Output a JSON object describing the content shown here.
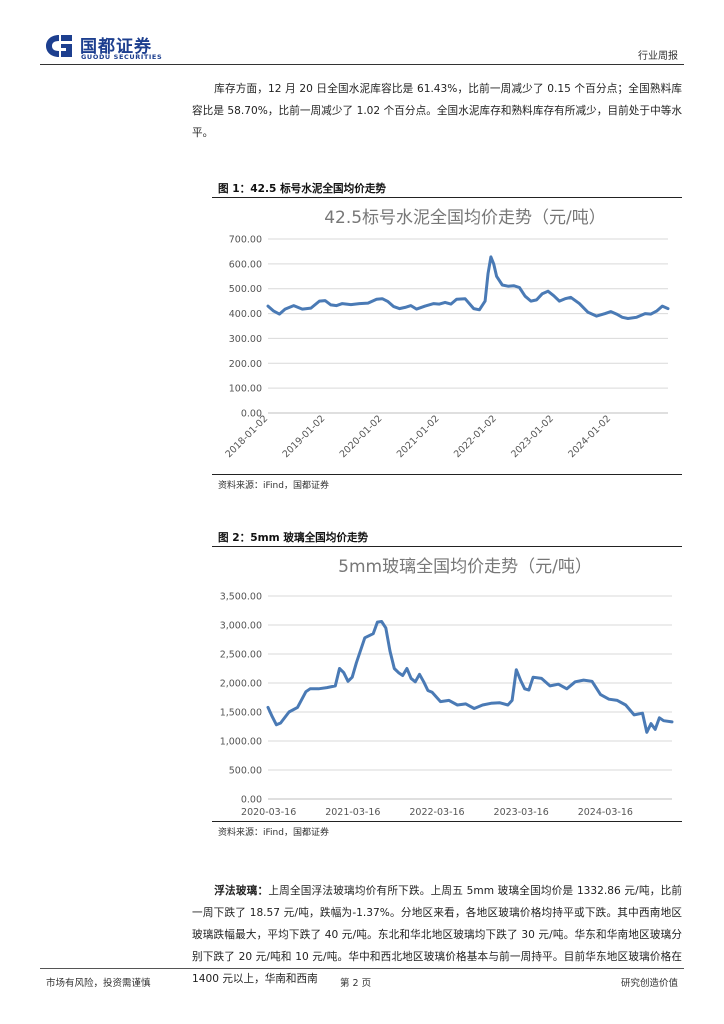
{
  "header": {
    "logo_cn": "国都证券",
    "logo_en": "GUODU SECURITIES",
    "report_type": "行业周报"
  },
  "para1": "库存方面，12 月 20 日全国水泥库容比是 61.43%，比前一周减少了 0.15 个百分点；全国熟料库容比是 58.70%，比前一周减少了 1.02 个百分点。全国水泥库存和熟料库存有所减少，目前处于中等水平。",
  "fig1": {
    "caption": "图 1：42.5 标号水泥全国均价走势",
    "source": "资料来源：iFind，国都证券"
  },
  "fig2": {
    "caption": "图 2：5mm 玻璃全国均价走势",
    "source": "资料来源：iFind，国都证券"
  },
  "para2": {
    "lead": "浮法玻璃：",
    "text": "上周全国浮法玻璃均价有所下跌。上周五 5mm 玻璃全国均价是 1332.86 元/吨，比前一周下跌了 18.57 元/吨，跌幅为-1.37%。分地区来看，各地区玻璃价格均持平或下跌。其中西南地区玻璃跌幅最大，平均下跌了 40 元/吨。东北和华北地区玻璃均下跌了 30 元/吨。华东和华南地区玻璃分别下跌了 20 元/吨和 10 元/吨。华中和西北地区玻璃价格基本与前一周持平。目前华东地区玻璃价格在 1400 元以上，华南和西南"
  },
  "footer": {
    "left": "市场有风险，投资需谨慎",
    "page": "第 2 页",
    "right": "研究创造价值"
  },
  "colors": {
    "brand": "#1d3f8f",
    "line": "#4a7ab5"
  },
  "chart_data": [
    {
      "type": "line",
      "title": "42.5标号水泥全国均价走势（元/吨）",
      "yticks": [
        "0.00",
        "100.00",
        "200.00",
        "300.00",
        "400.00",
        "500.00",
        "600.00",
        "700.00"
      ],
      "ylim": [
        0,
        700
      ],
      "xticks": [
        "2018-01-02",
        "2019-01-02",
        "2020-01-02",
        "2021-01-02",
        "2022-01-02",
        "2023-01-02",
        "2024-01-02"
      ],
      "xlim": [
        2018.0,
        2025.0
      ],
      "grid": true,
      "series": [
        {
          "x": [
            2018.0,
            2018.1,
            2018.2,
            2018.3,
            2018.45,
            2018.6,
            2018.75,
            2018.9,
            2019.0,
            2019.1,
            2019.2,
            2019.3,
            2019.45,
            2019.6,
            2019.75,
            2019.9,
            2020.0,
            2020.1,
            2020.2,
            2020.3,
            2020.4,
            2020.5,
            2020.6,
            2020.75,
            2020.9,
            2021.0,
            2021.1,
            2021.2,
            2021.3,
            2021.45,
            2021.6,
            2021.7,
            2021.8,
            2021.85,
            2021.9,
            2021.95,
            2022.0,
            2022.1,
            2022.2,
            2022.3,
            2022.4,
            2022.5,
            2022.6,
            2022.7,
            2022.8,
            2022.9,
            2023.0,
            2023.1,
            2023.2,
            2023.3,
            2023.45,
            2023.6,
            2023.75,
            2023.9,
            2024.0,
            2024.1,
            2024.2,
            2024.3,
            2024.45,
            2024.6,
            2024.7,
            2024.8,
            2024.9,
            2025.0
          ],
          "y": [
            430,
            410,
            398,
            418,
            432,
            418,
            422,
            450,
            452,
            435,
            432,
            440,
            436,
            440,
            442,
            458,
            460,
            448,
            428,
            420,
            425,
            432,
            418,
            430,
            440,
            438,
            445,
            438,
            458,
            460,
            420,
            415,
            450,
            560,
            628,
            600,
            550,
            515,
            510,
            512,
            505,
            470,
            450,
            455,
            480,
            490,
            472,
            450,
            460,
            465,
            440,
            405,
            390,
            400,
            408,
            398,
            385,
            380,
            385,
            400,
            398,
            410,
            430,
            420
          ]
        }
      ]
    },
    {
      "type": "line",
      "title": "5mm玻璃全国均价走势（元/吨）",
      "yticks": [
        "0.00",
        "500.00",
        "1,000.00",
        "1,500.00",
        "2,000.00",
        "2,500.00",
        "3,000.00",
        "3,500.00"
      ],
      "ylim": [
        0,
        3500
      ],
      "xticks": [
        "2020-03-16",
        "2021-03-16",
        "2022-03-16",
        "2023-03-16",
        "2024-03-16"
      ],
      "xlim": [
        2020.2,
        2025.0
      ],
      "grid": true,
      "series": [
        {
          "x": [
            2020.2,
            2020.25,
            2020.3,
            2020.35,
            2020.45,
            2020.55,
            2020.65,
            2020.7,
            2020.8,
            2020.9,
            2021.0,
            2021.05,
            2021.1,
            2021.15,
            2021.2,
            2021.25,
            2021.35,
            2021.45,
            2021.5,
            2021.55,
            2021.6,
            2021.65,
            2021.7,
            2021.75,
            2021.8,
            2021.85,
            2021.9,
            2021.95,
            2022.0,
            2022.05,
            2022.1,
            2022.15,
            2022.25,
            2022.35,
            2022.45,
            2022.55,
            2022.65,
            2022.75,
            2022.85,
            2022.95,
            2023.05,
            2023.1,
            2023.15,
            2023.2,
            2023.25,
            2023.3,
            2023.35,
            2023.45,
            2023.55,
            2023.65,
            2023.75,
            2023.85,
            2023.95,
            2024.05,
            2024.15,
            2024.25,
            2024.35,
            2024.45,
            2024.55,
            2024.65,
            2024.7,
            2024.75,
            2024.8,
            2024.85,
            2024.9,
            2025.0
          ],
          "y": [
            1580,
            1420,
            1280,
            1310,
            1500,
            1580,
            1850,
            1900,
            1900,
            1920,
            1950,
            2250,
            2180,
            2030,
            2100,
            2350,
            2780,
            2850,
            3050,
            3060,
            2950,
            2550,
            2250,
            2180,
            2130,
            2250,
            2080,
            2020,
            2150,
            2020,
            1870,
            1840,
            1680,
            1700,
            1620,
            1640,
            1560,
            1620,
            1650,
            1660,
            1620,
            1700,
            2230,
            2050,
            1900,
            1880,
            2100,
            2080,
            1950,
            1980,
            1900,
            2020,
            2050,
            2030,
            1800,
            1720,
            1700,
            1620,
            1450,
            1480,
            1150,
            1300,
            1200,
            1400,
            1350,
            1330
          ]
        }
      ]
    }
  ]
}
